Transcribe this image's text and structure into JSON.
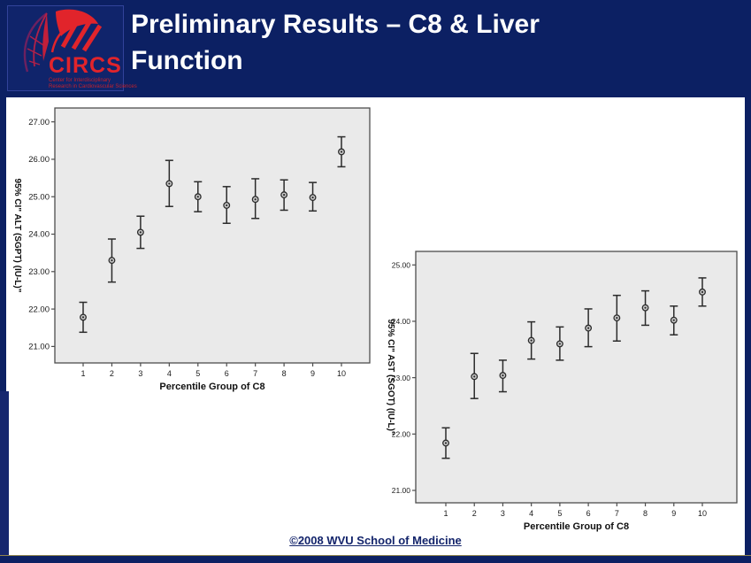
{
  "header": {
    "title_line1": "Preliminary Results – C8 & Liver",
    "title_line2": "Function",
    "logo": {
      "acronym": "CIRCS",
      "subtitle_line1": "Center for Interdisciplinary",
      "subtitle_line2": "Research in Cardiovascular Sciences"
    }
  },
  "footer": {
    "copyright": "©2008 WVU School of Medicine"
  },
  "colors": {
    "navy": "#0c2063",
    "logo_red": "#e1242b",
    "logo_purple": "#6d2060",
    "plot_bg": "#eaeaea",
    "frame": "#4d4d4d",
    "mark": "#2b2b2b",
    "marker_fill": "#c9c9c9",
    "tick_text": "#1a1a1a"
  },
  "chart_data": [
    {
      "type": "errorbar",
      "title": "",
      "xlabel": "Percentile Group of C8",
      "ylabel": "95% CI\" ALT (SGPT) (IU-L)\"",
      "categories": [
        1,
        2,
        3,
        4,
        5,
        6,
        7,
        8,
        9,
        10
      ],
      "ylim": [
        20.56,
        27.37
      ],
      "yticks": [
        21,
        22,
        23,
        24,
        25,
        26,
        27
      ],
      "grid": false,
      "legend": "none",
      "marker": "open-circle",
      "series": [
        {
          "name": "95% CI ALT (SGPT) (IU/L)",
          "mean": [
            21.78,
            23.3,
            24.05,
            25.35,
            25.0,
            24.77,
            24.93,
            25.05,
            24.98,
            26.2
          ],
          "ci_low": [
            21.38,
            22.72,
            23.62,
            24.74,
            24.6,
            24.29,
            24.42,
            24.64,
            24.62,
            25.8
          ],
          "ci_high": [
            22.18,
            23.87,
            24.48,
            25.97,
            25.4,
            25.27,
            25.48,
            25.45,
            25.38,
            26.6
          ]
        }
      ]
    },
    {
      "type": "errorbar",
      "title": "",
      "xlabel": "Percentile Group of C8",
      "ylabel": "95% CI\" AST (SGOT) (IU-L)\"",
      "categories": [
        1,
        2,
        3,
        4,
        5,
        6,
        7,
        8,
        9,
        10
      ],
      "ylim": [
        20.78,
        25.24
      ],
      "yticks": [
        21,
        22,
        23,
        24,
        25
      ],
      "grid": false,
      "legend": "none",
      "marker": "open-circle",
      "series": [
        {
          "name": "95% CI AST (SGOT) (IU/L)",
          "mean": [
            21.84,
            23.02,
            23.04,
            23.66,
            23.6,
            23.88,
            24.06,
            24.24,
            24.02,
            24.52
          ],
          "ci_low": [
            21.57,
            22.63,
            22.75,
            23.33,
            23.31,
            23.55,
            23.65,
            23.93,
            23.76,
            24.27
          ],
          "ci_high": [
            22.11,
            23.43,
            23.31,
            23.99,
            23.9,
            24.22,
            24.46,
            24.54,
            24.27,
            24.77
          ]
        }
      ]
    }
  ]
}
